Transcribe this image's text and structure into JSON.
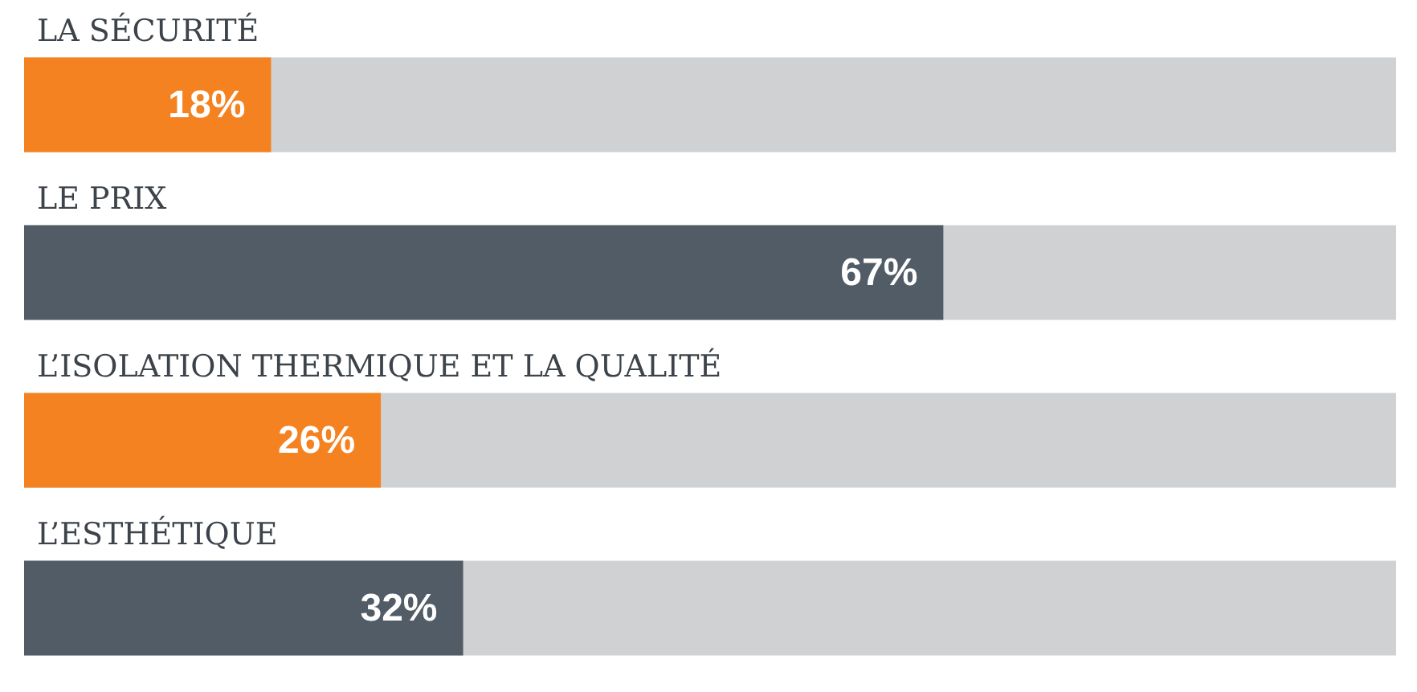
{
  "chart_data": {
    "type": "bar",
    "orientation": "horizontal",
    "categories": [
      "LA SÉCURITÉ",
      "LE PRIX",
      "L’ISOLATION THERMIQUE ET LA QUALITÉ",
      "L’ESTHÉTIQUE"
    ],
    "values": [
      18,
      67,
      26,
      32
    ],
    "colors": [
      "#f58220",
      "#525c66",
      "#f58220",
      "#525c66"
    ],
    "value_labels": [
      "18%",
      "67%",
      "26%",
      "32%"
    ],
    "xlim": [
      0,
      100
    ],
    "tick_labels": "y"
  }
}
